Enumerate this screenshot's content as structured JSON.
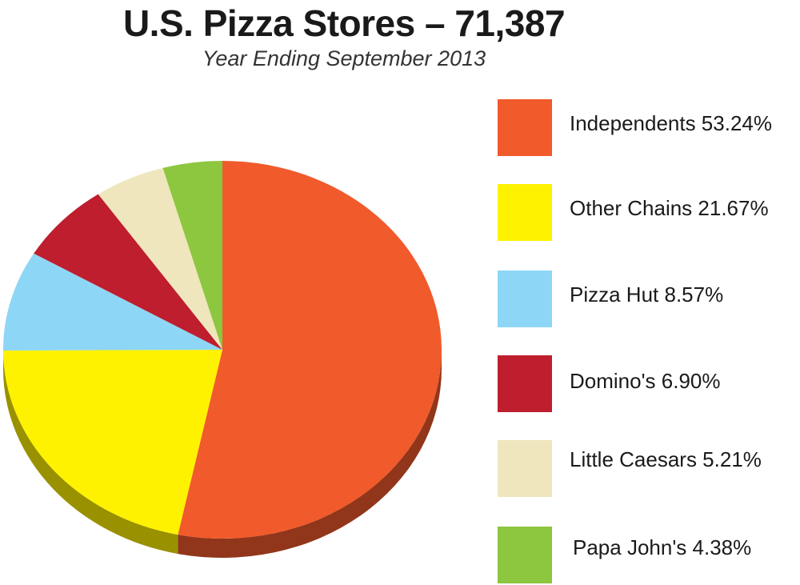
{
  "chart_data": {
    "type": "pie",
    "title": "U.S. Pizza Stores – 71,387",
    "subtitle": "Year Ending September 2013",
    "legend_position": "right",
    "slices": [
      {
        "label": "Independents 53.24%",
        "value": 53.24,
        "color": "#F15A2B"
      },
      {
        "label": "Other Chains 21.67%",
        "value": 21.67,
        "color": "#FFF200"
      },
      {
        "label": "Pizza Hut 8.57%",
        "value": 8.57,
        "color": "#8DD6F6"
      },
      {
        "label": "Domino's 6.90%",
        "value": 6.9,
        "color": "#BE1E2D"
      },
      {
        "label": "Little Caesars 5.21%",
        "value": 5.21,
        "color": "#EFE6BD"
      },
      {
        "label": "Papa John's 4.38%",
        "value": 4.38,
        "color": "#8DC63F"
      }
    ]
  }
}
